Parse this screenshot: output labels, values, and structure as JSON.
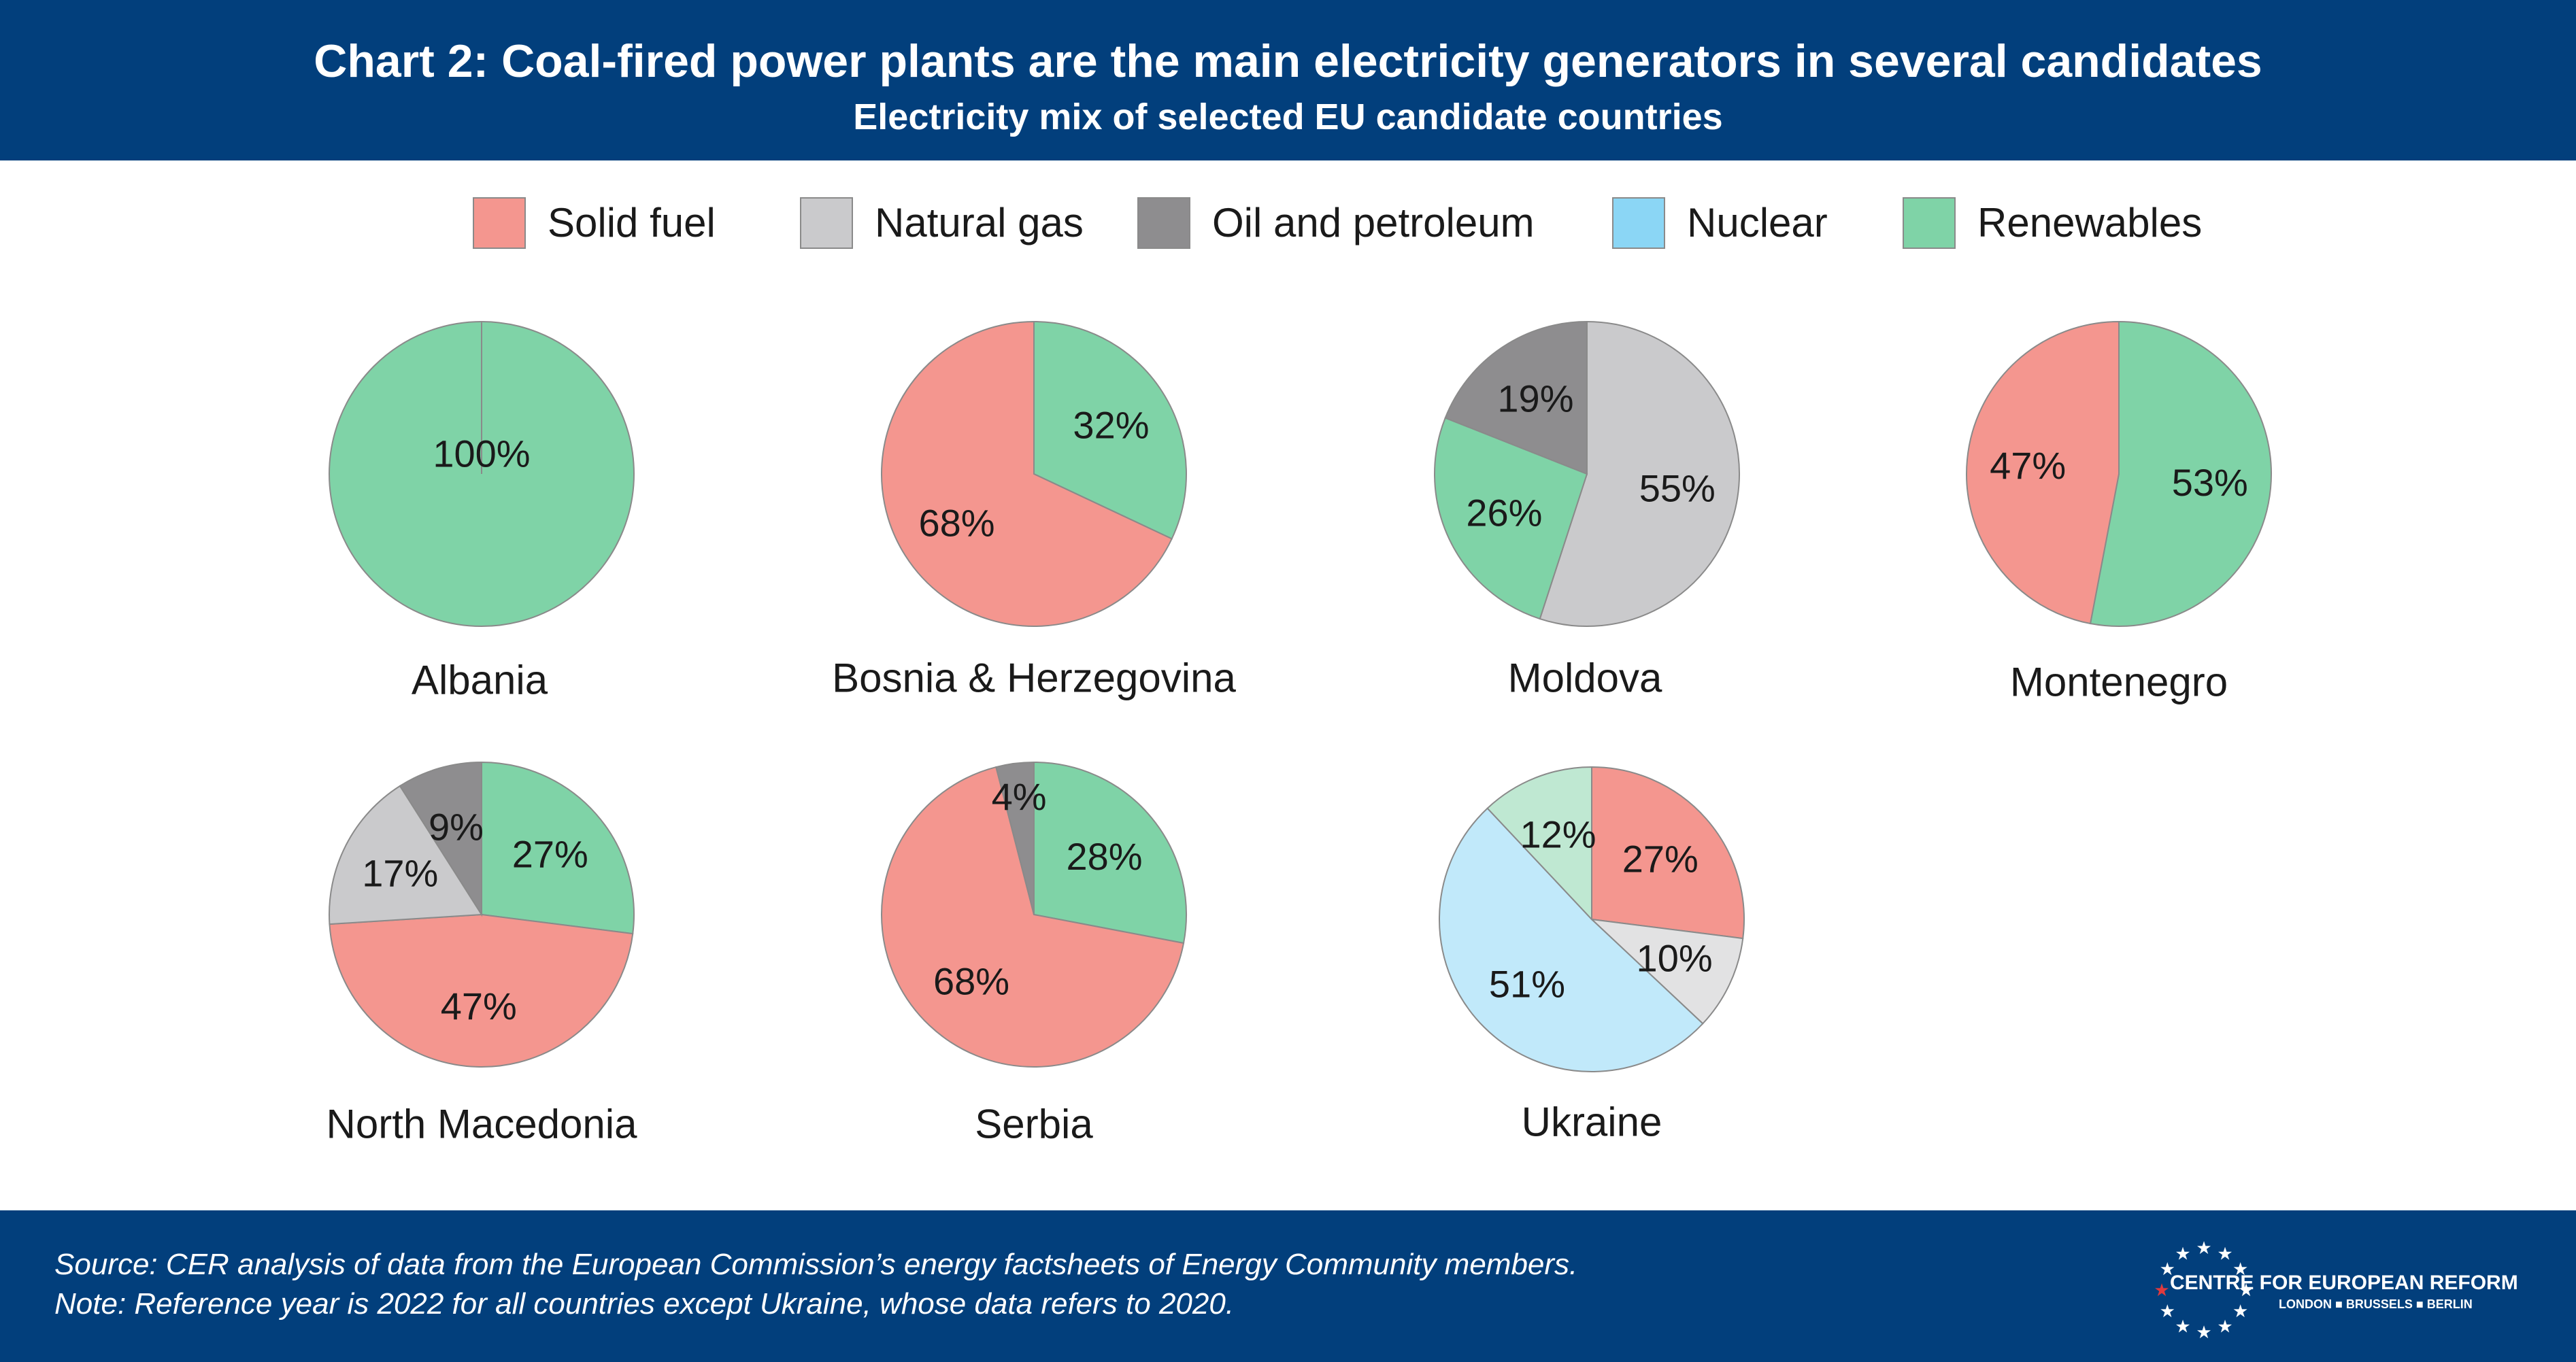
{
  "header": {
    "title": "Chart 2: Coal-fired power plants are the main electricity generators in several candidates",
    "subtitle": "Electricity mix of selected EU candidate countries"
  },
  "legend": [
    {
      "label": "Solid fuel",
      "color": "#f4968f"
    },
    {
      "label": "Natural gas",
      "color": "#cacacc"
    },
    {
      "label": "Oil and petroleum",
      "color": "#8e8d8f"
    },
    {
      "label": "Nuclear",
      "color": "#8bd6f5"
    },
    {
      "label": "Renewables",
      "color": "#7fd3a7"
    }
  ],
  "chart_data": {
    "type": "pie",
    "title": "Electricity mix of selected EU candidate countries",
    "pies": [
      {
        "name": "Albania",
        "slices": [
          {
            "category": "Renewables",
            "value": 100,
            "label": "100%"
          }
        ]
      },
      {
        "name": "Bosnia & Herzegovina",
        "slices": [
          {
            "category": "Renewables",
            "value": 32,
            "label": "32%"
          },
          {
            "category": "Solid fuel",
            "value": 68,
            "label": "68%"
          }
        ]
      },
      {
        "name": "Moldova",
        "slices": [
          {
            "category": "Natural gas",
            "value": 55,
            "label": "55%"
          },
          {
            "category": "Renewables",
            "value": 26,
            "label": "26%"
          },
          {
            "category": "Oil and petroleum",
            "value": 19,
            "label": "19%"
          }
        ]
      },
      {
        "name": "Montenegro",
        "slices": [
          {
            "category": "Renewables",
            "value": 53,
            "label": "53%"
          },
          {
            "category": "Solid fuel",
            "value": 47,
            "label": "47%"
          }
        ]
      },
      {
        "name": "North Macedonia",
        "slices": [
          {
            "category": "Renewables",
            "value": 27,
            "label": "27%"
          },
          {
            "category": "Solid fuel",
            "value": 47,
            "label": "47%"
          },
          {
            "category": "Natural gas",
            "value": 17,
            "label": "17%"
          },
          {
            "category": "Oil and petroleum",
            "value": 9,
            "label": "9%"
          }
        ]
      },
      {
        "name": "Serbia",
        "slices": [
          {
            "category": "Renewables",
            "value": 28,
            "label": "28%"
          },
          {
            "category": "Solid fuel",
            "value": 68,
            "label": "68%"
          },
          {
            "category": "Oil and petroleum",
            "value": 4,
            "label": "4%"
          }
        ]
      },
      {
        "name": "Ukraine",
        "slices": [
          {
            "category": "Solid fuel",
            "value": 27,
            "label": "27%"
          },
          {
            "category": "Natural gas",
            "value": 10,
            "label": "10%"
          },
          {
            "category": "Nuclear",
            "value": 51,
            "label": "51%"
          },
          {
            "category": "Renewables",
            "value": 12,
            "label": "12%"
          }
        ]
      }
    ]
  },
  "colors": {
    "Solid fuel": "#f4968f",
    "Natural gas": "#cacacc",
    "Oil and petroleum": "#8e8d8f",
    "Nuclear": "#8bd6f5",
    "Renewables": "#7fd3a7",
    "ukraine_pale": {
      "Natural gas": "#e2e2e3",
      "Nuclear": "#c1e9fa",
      "Renewables": "#bfe8d2"
    }
  },
  "footer": {
    "source": "Source: CER analysis of data from the European Commission’s energy factsheets of Energy Community members.",
    "note": "Note: Reference year is 2022 for all countries except Ukraine, whose data refers to 2020.",
    "logo_text": "CENTRE FOR EUROPEAN REFORM",
    "logo_cities": "LONDON ■ BRUSSELS ■ BERLIN"
  }
}
